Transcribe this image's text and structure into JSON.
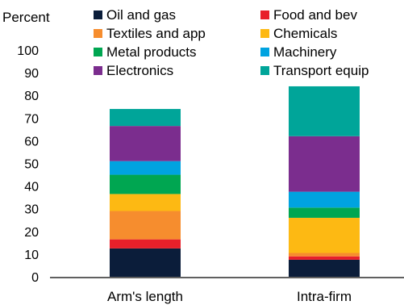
{
  "chart_data": {
    "type": "bar",
    "stacked": true,
    "title": "",
    "xlabel": "",
    "ylabel": "Percent",
    "ylim": [
      0,
      100
    ],
    "yticks": [
      0,
      10,
      20,
      30,
      40,
      50,
      60,
      70,
      80,
      90,
      100
    ],
    "grid": false,
    "legend_position": "top",
    "categories": [
      "Arm's length",
      "Intra-firm"
    ],
    "series": [
      {
        "name": "Oil and gas",
        "color": "#0b1d3a",
        "values": [
          12.5,
          7.5
        ]
      },
      {
        "name": "Food and bev",
        "color": "#e8202a",
        "values": [
          4.0,
          1.5
        ]
      },
      {
        "name": "Textiles and app",
        "color": "#f68d2e",
        "values": [
          12.5,
          1.5
        ]
      },
      {
        "name": "Chemicals",
        "color": "#fdb913",
        "values": [
          7.5,
          15.5
        ]
      },
      {
        "name": "Metal products",
        "color": "#00a651",
        "values": [
          8.5,
          4.5
        ]
      },
      {
        "name": "Machinery",
        "color": "#00a3e0",
        "values": [
          6.0,
          7.0
        ]
      },
      {
        "name": "Electronics",
        "color": "#7b2d8e",
        "values": [
          15.5,
          24.5
        ]
      },
      {
        "name": "Transport equip",
        "color": "#00a599",
        "values": [
          7.5,
          22.0
        ]
      }
    ]
  }
}
